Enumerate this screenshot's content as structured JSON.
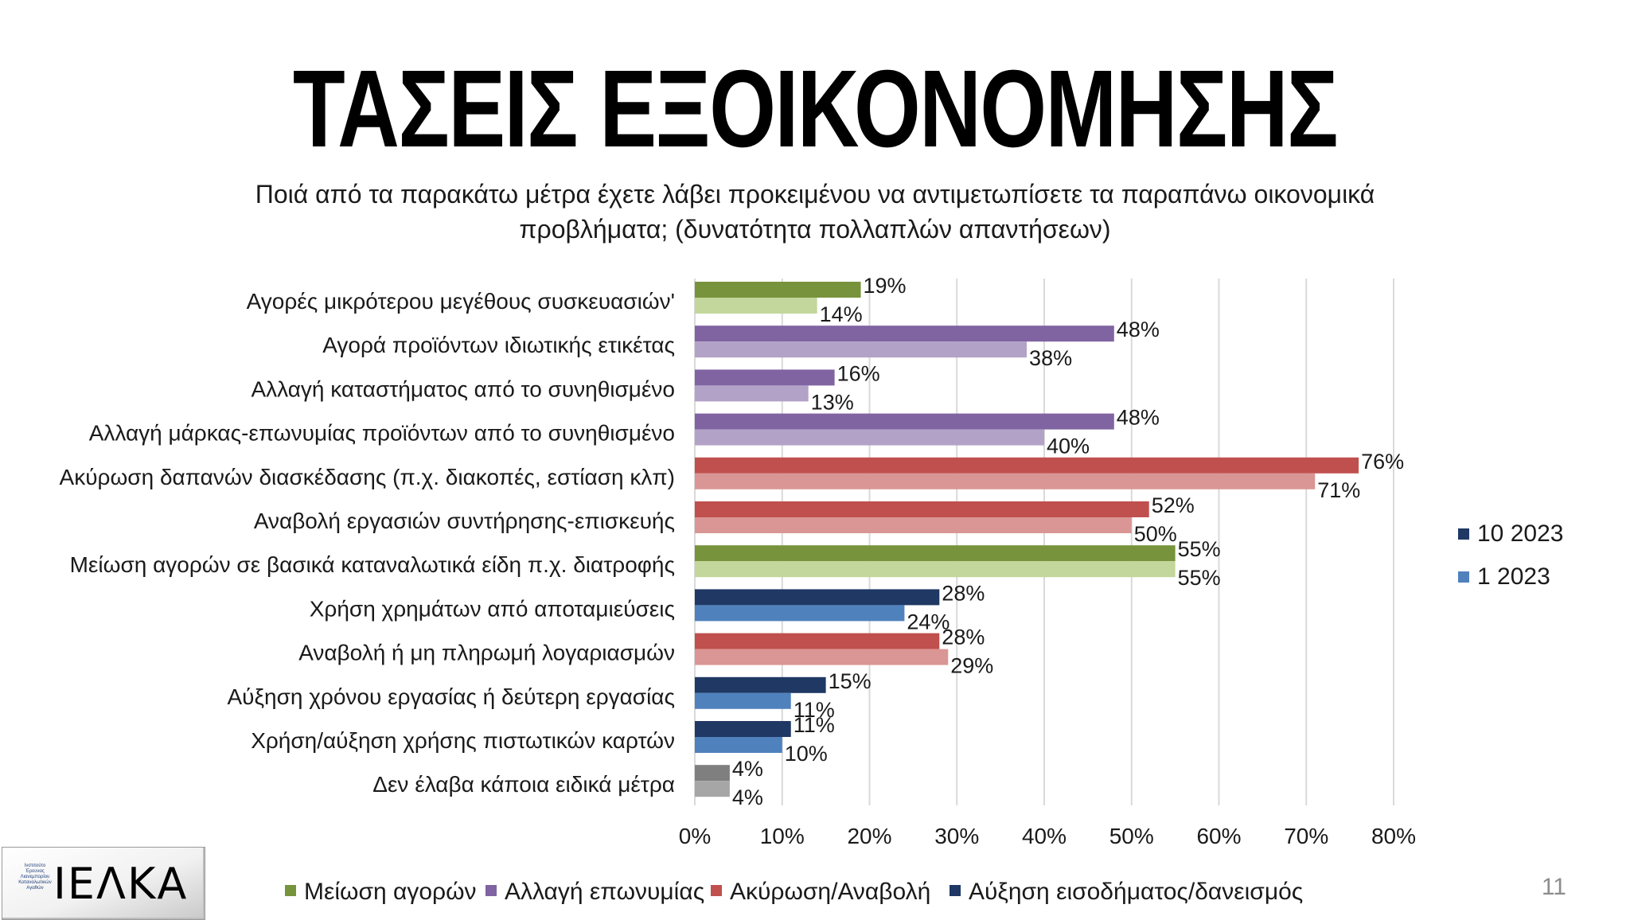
{
  "title": "ΤΑΣΕΙΣ ΕΞΟΙΚΟΝΟΜΗΣΗΣ",
  "subtitle": "Ποιά από τα παρακάτω μέτρα έχετε λάβει προκειμένου να αντιμετωπίσετε τα παραπάνω οικονομικά προβλήματα; (δυνατότητα πολλαπλών απαντήσεων)",
  "page_number": "11",
  "logo": {
    "text": "ΙΕΛΚΑ",
    "small_text": "Ινστιτούτο Έρευνας Λιανεμπορίου Καταναλωτικών Αγαθών"
  },
  "chart_data": {
    "type": "bar",
    "orientation": "horizontal",
    "title": "",
    "xlabel": "",
    "ylabel": "",
    "xlim": [
      0,
      80
    ],
    "x_ticks": [
      "0%",
      "10%",
      "20%",
      "30%",
      "40%",
      "50%",
      "60%",
      "70%",
      "80%"
    ],
    "grid": true,
    "categories": [
      "Αγορές μικρότερου μεγέθους συσκευασιών'",
      "Αγορά προϊόντων ιδιωτικής ετικέτας",
      "Αλλαγή καταστήματος από το συνηθισμένο",
      "Αλλαγή μάρκας-επωνυμίας προϊόντων από το συνηθισμένο",
      "Ακύρωση δαπανών διασκέδασης (π.χ. διακοπές, εστίαση κλπ)",
      "Αναβολή εργασιών συντήρησης-επισκευής",
      "Μείωση αγορών σε βασικά καταναλωτικά είδη π.χ. διατροφής",
      "Χρήση χρημάτων από αποταμιεύσεις",
      "Αναβολή ή μη πληρωμή λογαριασμών",
      "Αύξηση χρόνου εργασίας ή δεύτερη εργασίας",
      "Χρήση/αύξηση χρήσης πιστωτικών καρτών",
      "Δεν έλαβα κάποια ειδικά μέτρα"
    ],
    "category_group": [
      "Μείωση αγορών",
      "Αλλαγή επωνυμίας",
      "Αλλαγή επωνυμίας",
      "Αλλαγή επωνυμίας",
      "Ακύρωση/Αναβολή",
      "Ακύρωση/Αναβολή",
      "Μείωση αγορών",
      "Αύξηση εισοδήματος/δανεισμός",
      "Ακύρωση/Αναβολή",
      "Αύξηση εισοδήματος/δανεισμός",
      "Αύξηση εισοδήματος/δανεισμός",
      ""
    ],
    "series": [
      {
        "name": "10 2023",
        "values": [
          19,
          48,
          16,
          48,
          76,
          52,
          55,
          28,
          28,
          15,
          11,
          4
        ],
        "labels": [
          "19%",
          "48%",
          "16%",
          "48%",
          "76%",
          "52%",
          "55%",
          "28%",
          "28%",
          "15%",
          "11%",
          "4%"
        ]
      },
      {
        "name": "1 2023",
        "values": [
          14,
          38,
          13,
          40,
          71,
          50,
          55,
          24,
          29,
          11,
          10,
          4
        ],
        "labels": [
          "14%",
          "38%",
          "13%",
          "40%",
          "71%",
          "50%",
          "55%",
          "24%",
          "29%",
          "11%",
          "10%",
          "4%"
        ]
      }
    ],
    "group_colors": {
      "Μείωση αγορών": [
        "#77933c",
        "#c3d69b"
      ],
      "Αλλαγή επωνυμίας": [
        "#8064a2",
        "#b3a2c7"
      ],
      "Ακύρωση/Αναβολή": [
        "#c0504d",
        "#d99694"
      ],
      "Αύξηση εισοδήματος/δανεισμός": [
        "#1f3864",
        "#4f81bd"
      ],
      "": [
        "#7f7f7f",
        "#a6a6a6"
      ]
    },
    "legend_series": {
      "placement": "right",
      "items": [
        {
          "label": "10 2023",
          "color": "#1f3864"
        },
        {
          "label": "1 2023",
          "color": "#4f81bd"
        }
      ]
    },
    "legend_groups": {
      "placement": "bottom",
      "items": [
        {
          "label": "Μείωση αγορών",
          "color": "#77933c"
        },
        {
          "label": "Αλλαγή επωνυμίας",
          "color": "#8064a2"
        },
        {
          "label": "Ακύρωση/Αναβολή",
          "color": "#c0504d"
        },
        {
          "label": "Αύξηση εισοδήματος/δανεισμός",
          "color": "#1f3864"
        }
      ]
    },
    "grid_color": "#d9d9d9"
  }
}
